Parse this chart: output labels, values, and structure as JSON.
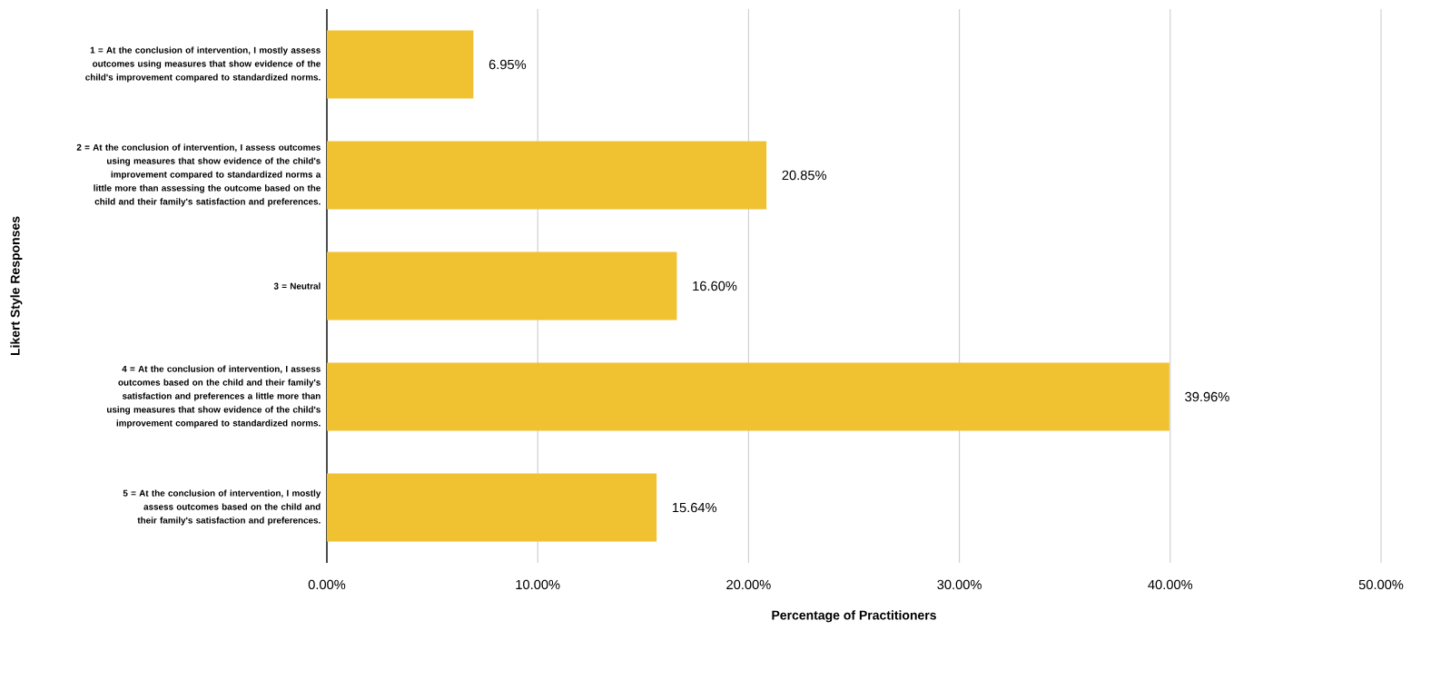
{
  "chart_data": {
    "type": "bar",
    "orientation": "horizontal",
    "xlabel": "Percentage of Practitioners",
    "ylabel": "Likert Style Responses",
    "categories": [
      "1 = At the conclusion of intervention, I mostly assess outcomes using measures that show evidence of the child's improvement compared to standardized norms.",
      "2 = At the conclusion of intervention, I assess outcomes using measures that show evidence of the child's improvement compared to standardized norms a little more than assessing the outcome based on the child and their family's satisfaction and preferences.",
      "3 = Neutral",
      "4 = At the conclusion of intervention, I assess outcomes based on the child and their family's satisfaction and preferences a little more than using measures that show evidence of the child's improvement compared to standardized norms.",
      "5 = At the conclusion of intervention, I mostly assess outcomes based on the child and their family's satisfaction and preferences."
    ],
    "values": [
      6.95,
      20.85,
      16.6,
      39.96,
      15.64
    ],
    "value_labels": [
      "6.95%",
      "20.85%",
      "16.60%",
      "39.96%",
      "15.64%"
    ],
    "color": "#f0c232",
    "xlim": [
      0,
      50
    ],
    "xticks": [
      {
        "value": 0,
        "label": "0.00%"
      },
      {
        "value": 10,
        "label": "10.00%"
      },
      {
        "value": 20,
        "label": "20.00%"
      },
      {
        "value": 30,
        "label": "30.00%"
      },
      {
        "value": 40,
        "label": "40.00%"
      },
      {
        "value": 50,
        "label": "50.00%"
      }
    ],
    "grid": "x"
  }
}
